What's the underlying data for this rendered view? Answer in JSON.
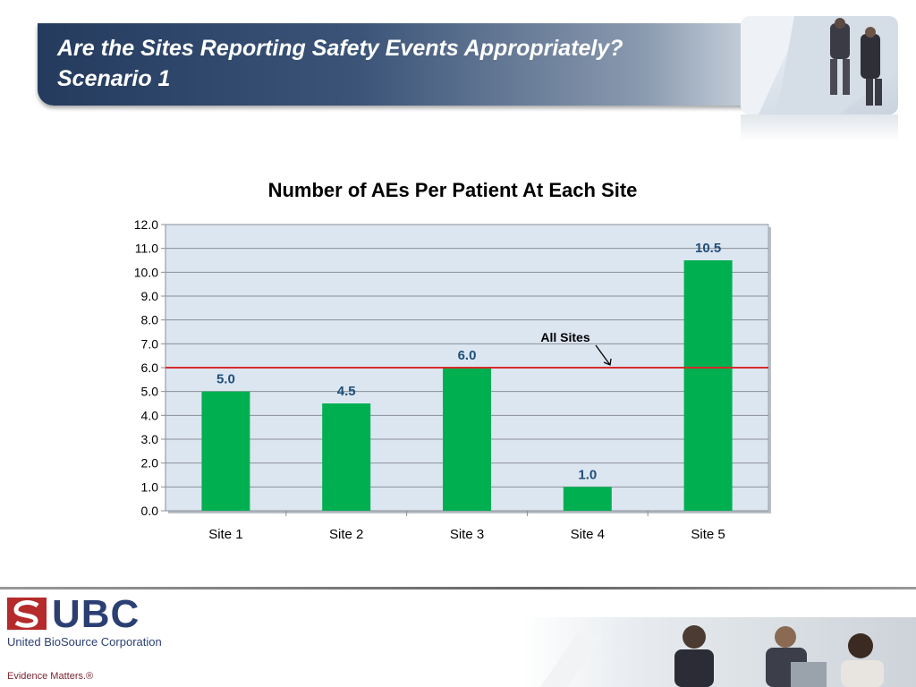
{
  "slide": {
    "title_line1": "Are the Sites Reporting Safety Events Appropriately?",
    "title_line2": "Scenario 1"
  },
  "footer": {
    "logo_text": "UBC",
    "company": "United BioSource Corporation",
    "tagline": "Evidence Matters.®"
  },
  "colors": {
    "bar": "#00b050",
    "reference_line": "#d62c2c",
    "data_label": "#1f4e79",
    "plot_bg": "#dce6f1",
    "banner_dark": "#243b5e"
  },
  "chart_data": {
    "type": "bar",
    "title": "Number of AEs Per Patient At Each Site",
    "categories": [
      "Site 1",
      "Site 2",
      "Site 3",
      "Site 4",
      "Site 5"
    ],
    "values": [
      5.0,
      4.5,
      6.0,
      1.0,
      10.5
    ],
    "data_labels": [
      "5.0",
      "4.5",
      "6.0",
      "1.0",
      "10.5"
    ],
    "ylim": [
      0,
      12
    ],
    "y_ticks": [
      "0.0",
      "1.0",
      "2.0",
      "3.0",
      "4.0",
      "5.0",
      "6.0",
      "7.0",
      "8.0",
      "9.0",
      "10.0",
      "11.0",
      "12.0"
    ],
    "grid": true,
    "reference_line": {
      "label": "All Sites",
      "value": 6.0
    }
  }
}
